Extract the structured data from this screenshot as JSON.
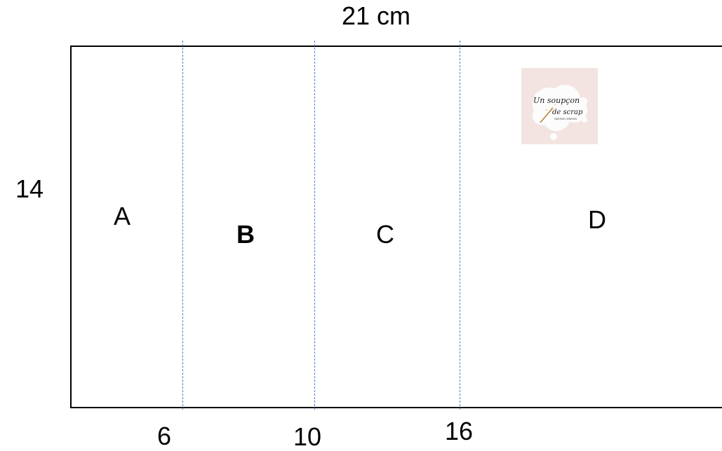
{
  "diagram": {
    "width_label": "21 cm",
    "height_label": "14",
    "panels": [
      {
        "label": "A"
      },
      {
        "label": "B"
      },
      {
        "label": "C"
      },
      {
        "label": "D"
      }
    ],
    "fold_marks": [
      "6",
      "10",
      "16"
    ],
    "fold_line_color": "#4a7bd0",
    "logo": {
      "text_line1": "Un soupçon",
      "text_line2": "de scrap",
      "text_line3": "MARTINE HENRION",
      "background": "#f3e4e2"
    }
  }
}
